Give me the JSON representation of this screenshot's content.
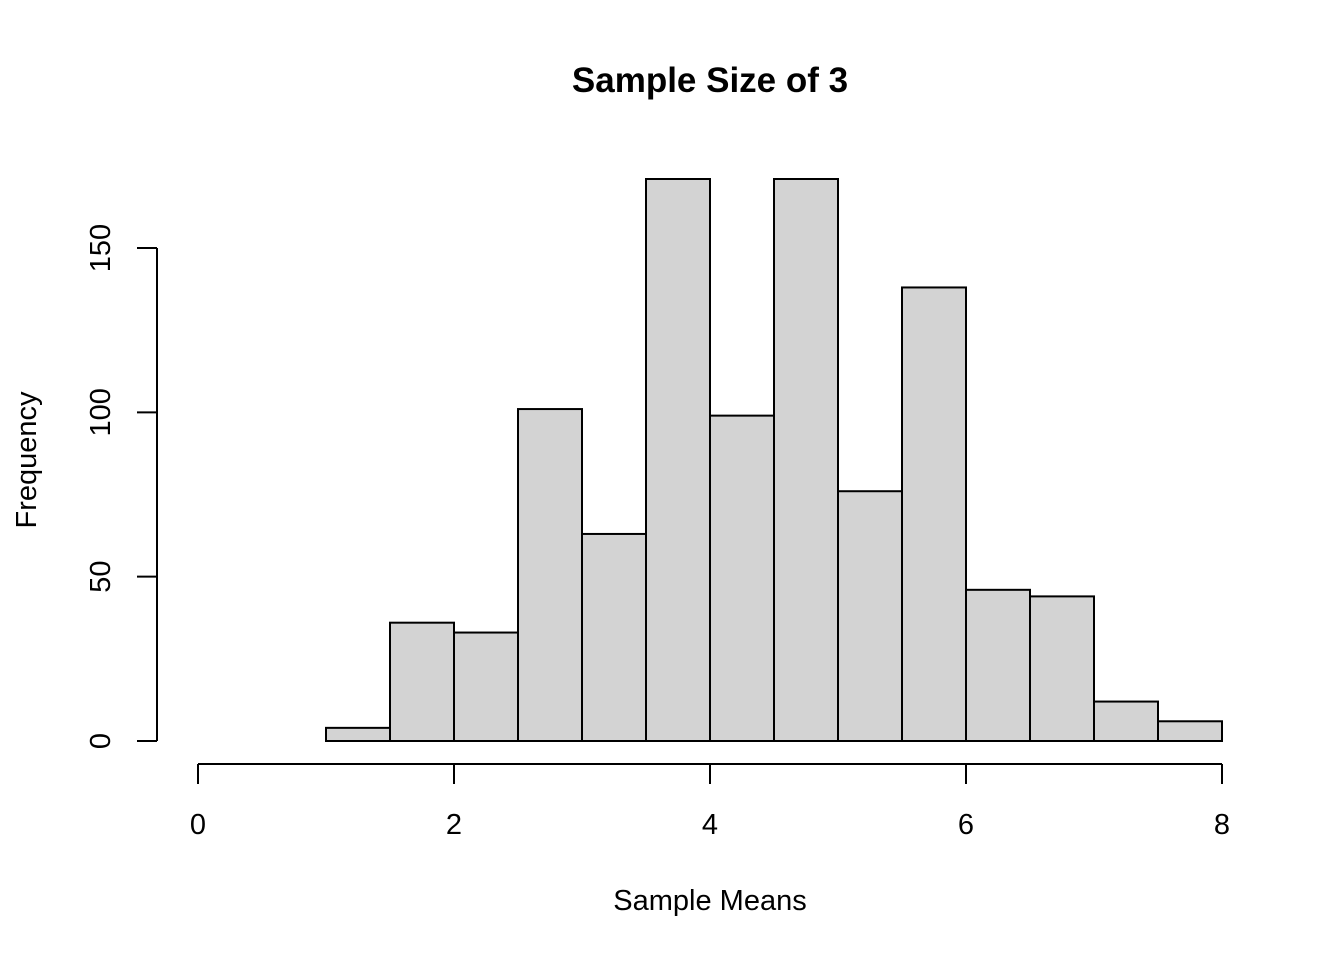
{
  "chart_data": {
    "type": "bar",
    "title": "Sample Size of 3",
    "xlabel": "Sample Means",
    "ylabel": "Frequency",
    "xlim": [
      0,
      8
    ],
    "ylim": [
      0,
      171
    ],
    "x_ticks": [
      0,
      2,
      4,
      6,
      8
    ],
    "y_ticks": [
      0,
      50,
      100,
      150
    ],
    "bins": [
      {
        "start": 1.0,
        "end": 1.5,
        "count": 4
      },
      {
        "start": 1.5,
        "end": 2.0,
        "count": 36
      },
      {
        "start": 2.0,
        "end": 2.5,
        "count": 33
      },
      {
        "start": 2.5,
        "end": 3.0,
        "count": 101
      },
      {
        "start": 3.0,
        "end": 3.5,
        "count": 63
      },
      {
        "start": 3.5,
        "end": 4.0,
        "count": 171
      },
      {
        "start": 4.0,
        "end": 4.5,
        "count": 99
      },
      {
        "start": 4.5,
        "end": 5.0,
        "count": 171
      },
      {
        "start": 5.0,
        "end": 5.5,
        "count": 76
      },
      {
        "start": 5.5,
        "end": 6.0,
        "count": 138
      },
      {
        "start": 6.0,
        "end": 6.5,
        "count": 46
      },
      {
        "start": 6.5,
        "end": 7.0,
        "count": 44
      },
      {
        "start": 7.0,
        "end": 7.5,
        "count": 12
      },
      {
        "start": 7.5,
        "end": 8.0,
        "count": 6
      }
    ],
    "bar_color": "#d3d3d3",
    "grid": false,
    "legend": "none"
  }
}
